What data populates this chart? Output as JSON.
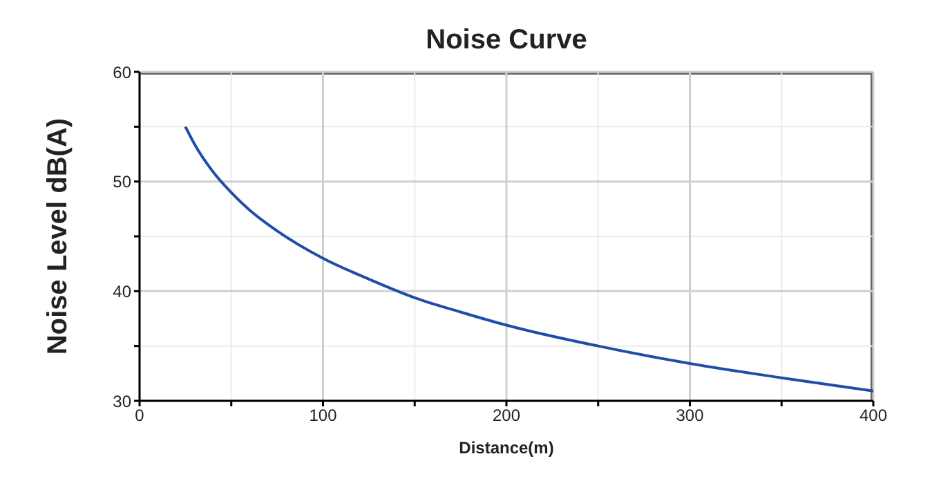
{
  "chart_data": {
    "type": "line",
    "title": "Noise Curve",
    "xlabel": "Distance(m)",
    "ylabel": "Noise Level dB(A)",
    "x": [
      25,
      30,
      40,
      50,
      60,
      75,
      100,
      125,
      150,
      175,
      200,
      250,
      300,
      350,
      400
    ],
    "series": [
      {
        "color": "#1f4ea8",
        "values": [
          55,
          53.4,
          50.9,
          49,
          47.4,
          45.5,
          43,
          41.1,
          39.4,
          38.1,
          36.9,
          35,
          33.4,
          32.1,
          30.9
        ]
      }
    ],
    "xlim": [
      0,
      400
    ],
    "xticks": [
      0,
      {
        "value": 50,
        "label": null
      },
      100,
      {
        "value": 150,
        "label": null
      },
      200,
      {
        "value": 250,
        "label": null
      },
      300,
      {
        "value": 350,
        "label": null
      },
      400
    ],
    "ylim": [
      30,
      60
    ],
    "yticks": [
      30,
      {
        "value": 35,
        "label": null
      },
      40,
      {
        "value": 45,
        "label": null
      },
      50,
      {
        "value": 55,
        "label": null
      },
      60
    ],
    "grid": true,
    "marker": "none",
    "line_style": "solid"
  }
}
